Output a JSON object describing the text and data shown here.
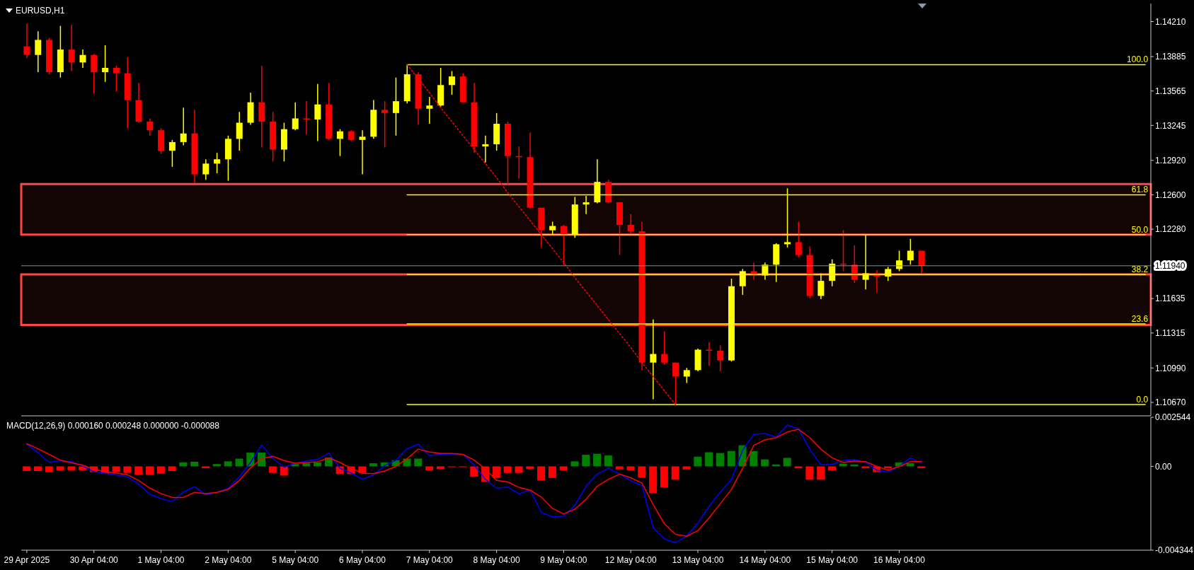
{
  "chart_data": [
    {
      "type": "candlestick",
      "title": "EURUSD,H1",
      "categories": [
        null,
        null,
        null,
        null,
        null,
        null,
        null,
        null,
        null,
        null,
        null,
        null,
        null,
        null,
        null,
        null,
        null,
        null,
        null,
        null,
        null,
        null,
        null,
        null,
        null,
        null,
        null,
        null,
        null,
        null,
        null,
        null,
        null,
        null,
        null,
        null,
        null,
        null,
        null,
        null,
        null,
        null,
        null,
        null,
        null,
        null,
        null,
        null,
        null,
        null,
        null,
        null,
        null,
        null,
        null,
        null,
        null,
        null,
        null,
        null,
        null,
        null,
        null,
        null,
        null,
        null,
        null,
        null,
        null,
        null,
        null,
        null,
        null,
        null,
        null,
        null,
        null,
        null,
        null,
        null,
        null,
        null,
        null,
        null,
        null,
        null,
        null,
        null,
        null,
        null,
        null,
        null,
        null,
        null,
        null,
        null,
        null,
        null,
        null,
        null,
        null
      ],
      "ohlc": [
        [
          1.1398,
          1.1419,
          1.1387,
          1.139
        ],
        [
          1.139,
          1.1412,
          1.1374,
          1.1404
        ],
        [
          1.1404,
          1.1406,
          1.1372,
          1.1374
        ],
        [
          1.1374,
          1.1417,
          1.1369,
          1.1395
        ],
        [
          1.1395,
          1.1418,
          1.1375,
          1.1383
        ],
        [
          1.1383,
          1.1395,
          1.1378,
          1.139
        ],
        [
          1.139,
          1.1391,
          1.1354,
          1.1374
        ],
        [
          1.1374,
          1.1399,
          1.1365,
          1.1378
        ],
        [
          1.1378,
          1.138,
          1.1356,
          1.1373
        ],
        [
          1.1373,
          1.1388,
          1.1322,
          1.1348
        ],
        [
          1.1348,
          1.1364,
          1.1327,
          1.1328
        ],
        [
          1.1328,
          1.1331,
          1.1315,
          1.132
        ],
        [
          1.132,
          1.1322,
          1.1298,
          1.1301
        ],
        [
          1.1301,
          1.1311,
          1.1286,
          1.1309
        ],
        [
          1.1309,
          1.1341,
          1.1306,
          1.1317
        ],
        [
          1.1317,
          1.1339,
          1.1271,
          1.1279
        ],
        [
          1.1279,
          1.1293,
          1.1274,
          1.1289
        ],
        [
          1.1289,
          1.1299,
          1.128,
          1.1293
        ],
        [
          1.1293,
          1.1315,
          1.1273,
          1.1312
        ],
        [
          1.1312,
          1.1337,
          1.1301,
          1.1327
        ],
        [
          1.1327,
          1.1355,
          1.1325,
          1.1346
        ],
        [
          1.1346,
          1.138,
          1.1304,
          1.1328
        ],
        [
          1.1328,
          1.1337,
          1.1291,
          1.1302
        ],
        [
          1.1302,
          1.1327,
          1.1291,
          1.1321
        ],
        [
          1.1321,
          1.1346,
          1.132,
          1.1331
        ],
        [
          1.1331,
          1.1347,
          1.1316,
          1.133
        ],
        [
          1.133,
          1.1363,
          1.131,
          1.1344
        ],
        [
          1.1344,
          1.1364,
          1.1311,
          1.1312
        ],
        [
          1.1312,
          1.1321,
          1.1296,
          1.1319
        ],
        [
          1.1319,
          1.132,
          1.131,
          1.1311
        ],
        [
          1.1311,
          1.132,
          1.1279,
          1.1314
        ],
        [
          1.1314,
          1.1348,
          1.1312,
          1.1339
        ],
        [
          1.1339,
          1.1347,
          1.1304,
          1.1336
        ],
        [
          1.1336,
          1.1369,
          1.1315,
          1.1347
        ],
        [
          1.1347,
          1.1381,
          1.1345,
          1.1372
        ],
        [
          1.1372,
          1.1374,
          1.1325,
          1.134
        ],
        [
          1.134,
          1.1351,
          1.1326,
          1.1343
        ],
        [
          1.1343,
          1.1378,
          1.1342,
          1.1362
        ],
        [
          1.1362,
          1.1375,
          1.1353,
          1.137
        ],
        [
          1.137,
          1.1373,
          1.1346,
          1.1346
        ],
        [
          1.1346,
          1.1364,
          1.1299,
          1.1305
        ],
        [
          1.1305,
          1.1315,
          1.129,
          1.1307
        ],
        [
          1.1307,
          1.1336,
          1.1301,
          1.1326
        ],
        [
          1.1326,
          1.1328,
          1.127,
          1.1296
        ],
        [
          1.1296,
          1.1305,
          1.1275,
          1.1295
        ],
        [
          1.1295,
          1.1318,
          1.1247,
          1.1248
        ],
        [
          1.1248,
          1.1248,
          1.1211,
          1.1227
        ],
        [
          1.1227,
          1.1235,
          1.1223,
          1.1231
        ],
        [
          1.1231,
          1.1232,
          1.1195,
          1.1223
        ],
        [
          1.1223,
          1.1258,
          1.122,
          1.1251
        ],
        [
          1.1251,
          1.1259,
          1.1242,
          1.1253
        ],
        [
          1.1253,
          1.1293,
          1.1252,
          1.1272
        ],
        [
          1.1272,
          1.1274,
          1.1252,
          1.1253
        ],
        [
          1.1253,
          1.1253,
          1.1204,
          1.1232
        ],
        [
          1.1232,
          1.1242,
          1.1223,
          1.1226
        ],
        [
          1.1226,
          1.1235,
          1.1097,
          1.1104
        ],
        [
          1.1104,
          1.1144,
          1.107,
          1.1112
        ],
        [
          1.1112,
          1.1133,
          1.1102,
          1.1104
        ],
        [
          1.1104,
          1.1104,
          1.1065,
          1.1091
        ],
        [
          1.1091,
          1.1099,
          1.1085,
          1.1097
        ],
        [
          1.1097,
          1.1117,
          1.1096,
          1.1116
        ],
        [
          1.1116,
          1.1123,
          1.1101,
          1.1115
        ],
        [
          1.1115,
          1.112,
          1.1096,
          1.1106
        ],
        [
          1.1106,
          1.1182,
          1.1105,
          1.1175
        ],
        [
          1.1175,
          1.1191,
          1.1167,
          1.1189
        ],
        [
          1.1189,
          1.1197,
          1.1181,
          1.1185
        ],
        [
          1.1185,
          1.1197,
          1.1181,
          1.1195
        ],
        [
          1.1195,
          1.1215,
          1.1179,
          1.1214
        ],
        [
          1.1214,
          1.1266,
          1.1211,
          1.1216
        ],
        [
          1.1216,
          1.1235,
          1.1202,
          1.1204
        ],
        [
          1.1204,
          1.1212,
          1.1164,
          1.1166
        ],
        [
          1.1166,
          1.1187,
          1.1163,
          1.118
        ],
        [
          1.118,
          1.12,
          1.1175,
          1.1196
        ],
        [
          1.1196,
          1.1227,
          1.1189,
          1.1195
        ],
        [
          1.1195,
          1.1213,
          1.1178,
          1.1181
        ],
        [
          1.1181,
          1.1223,
          1.1172,
          1.1187
        ],
        [
          1.1187,
          1.119,
          1.1169,
          1.1184
        ],
        [
          1.1184,
          1.1193,
          1.118,
          1.1191
        ],
        [
          1.1191,
          1.1208,
          1.1189,
          1.1199
        ],
        [
          1.1199,
          1.1219,
          1.1195,
          1.1208
        ],
        [
          1.1208,
          1.1208,
          1.1187,
          1.1194
        ],
        null,
        null,
        null,
        null,
        null,
        null,
        null,
        null,
        null,
        null,
        null,
        null,
        null,
        null,
        null,
        null,
        null,
        null,
        null,
        null
      ],
      "colors": [
        "#ff0000",
        "#ffff00",
        "#ff0000",
        "#ffff00",
        "#ff0000",
        "#ffff00",
        "#ff0000",
        "#ffff00",
        "#ff0000",
        "#ff0000",
        "#ff0000",
        "#ff0000",
        "#ff0000",
        "#ffff00",
        "#ffff00",
        "#ff0000",
        "#ffff00",
        "#ffff00",
        "#ffff00",
        "#ffff00",
        "#ffff00",
        "#ff0000",
        "#ff0000",
        "#ffff00",
        "#ffff00",
        "#ff0000",
        "#ffff00",
        "#ff0000",
        "#ffff00",
        "#ff0000",
        "#ffff00",
        "#ffff00",
        "#ff0000",
        "#ffff00",
        "#ffff00",
        "#ff0000",
        "#ffff00",
        "#ffff00",
        "#ffff00",
        "#ff0000",
        "#ff0000",
        "#ffff00",
        "#ffff00",
        "#ff0000",
        "#ff0000",
        "#ff0000",
        "#ff0000",
        "#ffff00",
        "#ff0000",
        "#ffff00",
        "#ffff00",
        "#ffff00",
        "#ff0000",
        "#ff0000",
        "#ff0000",
        "#ff0000",
        "#ffff00",
        "#ff0000",
        "#ff0000",
        "#ffff00",
        "#ffff00",
        "#ff0000",
        "#ff0000",
        "#ffff00",
        "#ffff00",
        "#ff0000",
        "#ffff00",
        "#ffff00",
        "#ffff00",
        "#ff0000",
        "#ff0000",
        "#ffff00",
        "#ffff00",
        "#ff0000",
        "#ff0000",
        "#ffff00",
        "#ff0000",
        "#ffff00",
        "#ffff00",
        "#ffff00",
        "#ff0000",
        null,
        null,
        null,
        null,
        null,
        null,
        null,
        null,
        null,
        null,
        null,
        null,
        null,
        null,
        null,
        null,
        null,
        null,
        null,
        null
      ],
      "series": [
        {
          "type": "line",
          "name": "100.0",
          "color": "#ffff00",
          "values": [
            null,
            null,
            null,
            null,
            null,
            null,
            null,
            null,
            null,
            null,
            null,
            null,
            null,
            null,
            null,
            null,
            null,
            null,
            null,
            null,
            null,
            null,
            null,
            null,
            null,
            null,
            null,
            null,
            null,
            null,
            null,
            null,
            null,
            null,
            1.1381,
            1.1381,
            1.1381,
            1.1381,
            1.1381,
            1.1381,
            1.1381,
            1.1381,
            1.1381,
            1.1381,
            1.1381,
            1.1381,
            1.1381,
            1.1381,
            1.1381,
            1.1381,
            1.1381,
            1.1381,
            1.1381,
            1.1381,
            1.1381,
            1.1381,
            1.1381,
            1.1381,
            1.1381,
            1.1381,
            1.1381,
            1.1381,
            1.1381,
            1.1381,
            1.1381,
            1.1381,
            1.1381,
            1.1381,
            1.1381,
            1.1381,
            1.1381,
            1.1381,
            1.1381,
            1.1381,
            1.1381,
            1.1381,
            1.1381,
            1.1381,
            1.1381,
            1.1381,
            1.1381,
            1.1381,
            1.1381,
            1.1381,
            1.1381,
            1.1381,
            1.1381,
            1.1381,
            1.1381,
            1.1381,
            1.1381,
            1.1381,
            1.1381,
            1.1381,
            1.1381,
            1.1381,
            1.1381,
            1.1381,
            1.1381,
            1.1381,
            1.1381
          ]
        },
        {
          "type": "line",
          "name": "61.8",
          "color": "#ffff00",
          "values": [
            null,
            null,
            null,
            null,
            null,
            null,
            null,
            null,
            null,
            null,
            null,
            null,
            null,
            null,
            null,
            null,
            null,
            null,
            null,
            null,
            null,
            null,
            null,
            null,
            null,
            null,
            null,
            null,
            null,
            null,
            null,
            null,
            null,
            null,
            1.126,
            1.126,
            1.126,
            1.126,
            1.126,
            1.126,
            1.126,
            1.126,
            1.126,
            1.126,
            1.126,
            1.126,
            1.126,
            1.126,
            1.126,
            1.126,
            1.126,
            1.126,
            1.126,
            1.126,
            1.126,
            1.126,
            1.126,
            1.126,
            1.126,
            1.126,
            1.126,
            1.126,
            1.126,
            1.126,
            1.126,
            1.126,
            1.126,
            1.126,
            1.126,
            1.126,
            1.126,
            1.126,
            1.126,
            1.126,
            1.126,
            1.126,
            1.126,
            1.126,
            1.126,
            1.126,
            1.126,
            1.126,
            1.126,
            1.126,
            1.126,
            1.126,
            1.126,
            1.126,
            1.126,
            1.126,
            1.126,
            1.126,
            1.126,
            1.126,
            1.126,
            1.126,
            1.126,
            1.126,
            1.126,
            1.126,
            1.126
          ]
        },
        {
          "type": "line",
          "name": "50.0",
          "color": "#ffff00",
          "values": [
            null,
            null,
            null,
            null,
            null,
            null,
            null,
            null,
            null,
            null,
            null,
            null,
            null,
            null,
            null,
            null,
            null,
            null,
            null,
            null,
            null,
            null,
            null,
            null,
            null,
            null,
            null,
            null,
            null,
            null,
            null,
            null,
            null,
            null,
            1.1223,
            1.1223,
            1.1223,
            1.1223,
            1.1223,
            1.1223,
            1.1223,
            1.1223,
            1.1223,
            1.1223,
            1.1223,
            1.1223,
            1.1223,
            1.1223,
            1.1223,
            1.1223,
            1.1223,
            1.1223,
            1.1223,
            1.1223,
            1.1223,
            1.1223,
            1.1223,
            1.1223,
            1.1223,
            1.1223,
            1.1223,
            1.1223,
            1.1223,
            1.1223,
            1.1223,
            1.1223,
            1.1223,
            1.1223,
            1.1223,
            1.1223,
            1.1223,
            1.1223,
            1.1223,
            1.1223,
            1.1223,
            1.1223,
            1.1223,
            1.1223,
            1.1223,
            1.1223,
            1.1223,
            1.1223,
            1.1223,
            1.1223,
            1.1223,
            1.1223,
            1.1223,
            1.1223,
            1.1223,
            1.1223,
            1.1223,
            1.1223,
            1.1223,
            1.1223,
            1.1223,
            1.1223,
            1.1223,
            1.1223,
            1.1223,
            1.1223,
            1.1223
          ]
        },
        {
          "type": "line",
          "name": "38.2",
          "color": "#ffff00",
          "values": [
            null,
            null,
            null,
            null,
            null,
            null,
            null,
            null,
            null,
            null,
            null,
            null,
            null,
            null,
            null,
            null,
            null,
            null,
            null,
            null,
            null,
            null,
            null,
            null,
            null,
            null,
            null,
            null,
            null,
            null,
            null,
            null,
            null,
            null,
            1.1186,
            1.1186,
            1.1186,
            1.1186,
            1.1186,
            1.1186,
            1.1186,
            1.1186,
            1.1186,
            1.1186,
            1.1186,
            1.1186,
            1.1186,
            1.1186,
            1.1186,
            1.1186,
            1.1186,
            1.1186,
            1.1186,
            1.1186,
            1.1186,
            1.1186,
            1.1186,
            1.1186,
            1.1186,
            1.1186,
            1.1186,
            1.1186,
            1.1186,
            1.1186,
            1.1186,
            1.1186,
            1.1186,
            1.1186,
            1.1186,
            1.1186,
            1.1186,
            1.1186,
            1.1186,
            1.1186,
            1.1186,
            1.1186,
            1.1186,
            1.1186,
            1.1186,
            1.1186,
            1.1186,
            1.1186,
            1.1186,
            1.1186,
            1.1186,
            1.1186,
            1.1186,
            1.1186,
            1.1186,
            1.1186,
            1.1186,
            1.1186,
            1.1186,
            1.1186,
            1.1186,
            1.1186,
            1.1186,
            1.1186,
            1.1186,
            1.1186,
            1.1186
          ]
        },
        {
          "type": "line",
          "name": "23.6",
          "color": "#ffff00",
          "values": [
            null,
            null,
            null,
            null,
            null,
            null,
            null,
            null,
            null,
            null,
            null,
            null,
            null,
            null,
            null,
            null,
            null,
            null,
            null,
            null,
            null,
            null,
            null,
            null,
            null,
            null,
            null,
            null,
            null,
            null,
            null,
            null,
            null,
            null,
            1.114,
            1.114,
            1.114,
            1.114,
            1.114,
            1.114,
            1.114,
            1.114,
            1.114,
            1.114,
            1.114,
            1.114,
            1.114,
            1.114,
            1.114,
            1.114,
            1.114,
            1.114,
            1.114,
            1.114,
            1.114,
            1.114,
            1.114,
            1.114,
            1.114,
            1.114,
            1.114,
            1.114,
            1.114,
            1.114,
            1.114,
            1.114,
            1.114,
            1.114,
            1.114,
            1.114,
            1.114,
            1.114,
            1.114,
            1.114,
            1.114,
            1.114,
            1.114,
            1.114,
            1.114,
            1.114,
            1.114,
            1.114,
            1.114,
            1.114,
            1.114,
            1.114,
            1.114,
            1.114,
            1.114,
            1.114,
            1.114,
            1.114,
            1.114,
            1.114,
            1.114,
            1.114,
            1.114,
            1.114,
            1.114,
            1.114,
            1.114
          ]
        },
        {
          "type": "line",
          "name": "0.0",
          "color": "#ffff00",
          "values": [
            null,
            null,
            null,
            null,
            null,
            null,
            null,
            null,
            null,
            null,
            null,
            null,
            null,
            null,
            null,
            null,
            null,
            null,
            null,
            null,
            null,
            null,
            null,
            null,
            null,
            null,
            null,
            null,
            null,
            null,
            null,
            null,
            null,
            null,
            1.1065,
            1.1065,
            1.1065,
            1.1065,
            1.1065,
            1.1065,
            1.1065,
            1.1065,
            1.1065,
            1.1065,
            1.1065,
            1.1065,
            1.1065,
            1.1065,
            1.1065,
            1.1065,
            1.1065,
            1.1065,
            1.1065,
            1.1065,
            1.1065,
            1.1065,
            1.1065,
            1.1065,
            1.1065,
            1.1065,
            1.1065,
            1.1065,
            1.1065,
            1.1065,
            1.1065,
            1.1065,
            1.1065,
            1.1065,
            1.1065,
            1.1065,
            1.1065,
            1.1065,
            1.1065,
            1.1065,
            1.1065,
            1.1065,
            1.1065,
            1.1065,
            1.1065,
            1.1065,
            1.1065,
            1.1065,
            1.1065,
            1.1065,
            1.1065,
            1.1065,
            1.1065,
            1.1065,
            1.1065,
            1.1065,
            1.1065,
            1.1065,
            1.1065,
            1.1065,
            1.1065,
            1.1065,
            1.1065,
            1.1065,
            1.1065,
            1.1065,
            1.1065
          ]
        },
        {
          "type": "line",
          "color": "#ff0000",
          "line_style": "dotted",
          "values": [
            null,
            null,
            null,
            null,
            null,
            null,
            null,
            null,
            null,
            null,
            null,
            null,
            null,
            null,
            null,
            null,
            null,
            null,
            null,
            null,
            null,
            null,
            null,
            null,
            null,
            null,
            null,
            null,
            null,
            null,
            null,
            null,
            null,
            null,
            1.1381,
            1.1368,
            1.1355,
            1.1341,
            1.1328,
            1.1315,
            1.1302,
            1.1289,
            1.1276,
            1.1262,
            1.1249,
            1.1236,
            1.1223,
            1.121,
            1.1197,
            1.1183,
            1.117,
            1.1157,
            1.1144,
            1.1131,
            1.1118,
            1.1104,
            1.1091,
            1.1078,
            1.1065,
            null,
            null,
            null,
            null,
            null,
            null,
            null,
            null,
            null,
            null,
            null,
            null,
            null,
            null,
            null,
            null,
            null,
            null,
            null,
            null,
            null,
            null,
            null,
            null,
            null,
            null,
            null,
            null,
            null,
            null,
            null,
            null,
            null,
            null,
            null,
            null,
            null,
            null,
            null,
            null,
            null,
            null
          ]
        }
      ],
      "ylim": [
        1.10545,
        1.14378
      ],
      "yticks": [
        {
          "value": 1.1067,
          "label": "1.10670"
        },
        {
          "value": 1.1099,
          "label": "1.10990"
        },
        1.11315,
        1.11635,
        {
          "value": 1.1228,
          "label": "1.12280"
        },
        {
          "value": 1.126,
          "label": "1.12600"
        },
        {
          "value": 1.1292,
          "label": "1.12920"
        },
        1.13245,
        1.13565,
        1.13885,
        {
          "value": 1.1421,
          "label": "1.14210"
        }
      ],
      "ref_lines": [
        {
          "axis": "y",
          "value": 1.1194,
          "label": "1.11940",
          "color": "#8090a0"
        }
      ],
      "bands": [
        {
          "axis": "y",
          "from": 1.1223,
          "to": 1.127,
          "color": "#ff4545"
        },
        {
          "axis": "y",
          "from": 1.1139,
          "to": 1.1186,
          "color": "#ff4545"
        }
      ],
      "marker": "none"
    },
    {
      "type": "bar",
      "title": "MACD(12,26,9) 0.000160 0.000248 0.000000 -0.000088",
      "categories": [
        "29 Apr 2025",
        null,
        null,
        null,
        null,
        null,
        "30 Apr 04:00",
        null,
        null,
        null,
        null,
        null,
        "1 May 04:00",
        null,
        null,
        null,
        null,
        null,
        "2 May 04:00",
        null,
        null,
        null,
        null,
        null,
        "5 May 04:00",
        null,
        null,
        null,
        null,
        null,
        "6 May 04:00",
        null,
        null,
        null,
        null,
        null,
        "7 May 04:00",
        null,
        null,
        null,
        null,
        null,
        "8 May 04:00",
        null,
        null,
        null,
        null,
        null,
        "9 May 04:00",
        null,
        null,
        null,
        null,
        null,
        "12 May 04:00",
        null,
        null,
        null,
        null,
        null,
        "13 May 04:00",
        null,
        null,
        null,
        null,
        null,
        "14 May 04:00",
        null,
        null,
        null,
        null,
        null,
        "15 May 04:00",
        null,
        null,
        null,
        null,
        null,
        "16 May 04:00",
        null,
        null,
        null,
        null,
        null,
        null,
        null,
        null,
        null,
        null,
        null,
        null,
        null,
        null,
        null,
        null,
        null,
        null,
        null,
        null,
        null,
        null
      ],
      "series": [
        {
          "type": "bar",
          "values": [
            -0.00024,
            -0.00024,
            -0.0003,
            -0.0002,
            -0.0002,
            -0.0002,
            -0.0003,
            -0.00038,
            -0.00028,
            -0.00034,
            -0.00044,
            -0.00044,
            -0.00038,
            -0.00024,
            0.0002,
            0.00024,
            -0.0001,
            0.00012,
            0.00026,
            0.0004,
            0.00071,
            0.00071,
            -0.00034,
            -0.00048,
            0.00012,
            0.00016,
            0.0002,
            0.00046,
            -0.0004,
            -0.0004,
            -0.00034,
            0.00016,
            0.0002,
            0.00032,
            0.0004,
            0.0004,
            -0.0002,
            -0.00014,
            -4e-05,
            -4e-05,
            -0.00054,
            -0.00079,
            -0.0006,
            -0.00034,
            -0.00034,
            -0.00014,
            -0.00073,
            -0.0006,
            -0.0002,
            0.00026,
            0.0006,
            0.00065,
            0.00056,
            -0.00016,
            -0.0002,
            -0.00059,
            -0.00139,
            -0.00109,
            -0.00069,
            -0.00016,
            0.0005,
            0.00073,
            0.00069,
            0.00079,
            0.00109,
            0.00079,
            0.00036,
            0.0001,
            0.00044,
            -0.0001,
            -0.00069,
            -0.00069,
            -0.0002,
            0.00014,
            0.0001,
            -0.0001,
            -0.0003,
            -0.0001,
            0.0002,
            0.00016,
            -9e-05,
            null,
            null,
            null,
            null,
            null,
            null,
            null,
            null,
            null,
            null,
            null,
            null,
            null,
            null,
            null,
            null,
            null,
            null,
            null,
            null
          ],
          "colors": [
            "#ff0000",
            "#ff0000",
            "#ff0000",
            "#ff0000",
            "#ff0000",
            "#ff0000",
            "#ff0000",
            "#ff0000",
            "#ff0000",
            "#ff0000",
            "#ff0000",
            "#ff0000",
            "#ff0000",
            "#ff0000",
            "#008000",
            "#008000",
            "#ff0000",
            "#008000",
            "#008000",
            "#008000",
            "#008000",
            "#008000",
            "#ff0000",
            "#ff0000",
            "#008000",
            "#008000",
            "#008000",
            "#008000",
            "#ff0000",
            "#ff0000",
            "#ff0000",
            "#008000",
            "#008000",
            "#008000",
            "#008000",
            "#008000",
            "#ff0000",
            "#ff0000",
            "#ff0000",
            "#ff0000",
            "#ff0000",
            "#ff0000",
            "#ff0000",
            "#ff0000",
            "#ff0000",
            "#ff0000",
            "#ff0000",
            "#ff0000",
            "#ff0000",
            "#008000",
            "#008000",
            "#008000",
            "#008000",
            "#ff0000",
            "#ff0000",
            "#ff0000",
            "#ff0000",
            "#ff0000",
            "#ff0000",
            "#ff0000",
            "#008000",
            "#008000",
            "#008000",
            "#008000",
            "#008000",
            "#008000",
            "#008000",
            "#008000",
            "#008000",
            "#ff0000",
            "#ff0000",
            "#ff0000",
            "#ff0000",
            "#008000",
            "#008000",
            "#ff0000",
            "#ff0000",
            "#ff0000",
            "#008000",
            "#008000",
            "#ff0000",
            null,
            null,
            null,
            null,
            null,
            null,
            null,
            null,
            null,
            null,
            null,
            null,
            null,
            null,
            null,
            null,
            null,
            null,
            null,
            null
          ]
        },
        {
          "type": "line",
          "color": "#0000ff",
          "values": [
            0.00115,
            0.00071,
            0.0002,
            0.0003,
            0.00024,
            2e-05,
            -0.00028,
            -0.00036,
            -0.00044,
            -0.00054,
            -0.00093,
            -0.00145,
            -0.00167,
            -0.00183,
            -0.00133,
            -0.00105,
            -0.00147,
            -0.00135,
            -0.00113,
            -0.00054,
            0.0002,
            0.00111,
            0.0004,
            -4e-05,
            0.00016,
            0.00028,
            0.00036,
            0.00069,
            -0.0001,
            -0.00034,
            -0.00067,
            -0.00044,
            4e-05,
            0.00032,
            0.00091,
            0.00115,
            0.00056,
            0.00063,
            0.00065,
            0.0006,
            6e-05,
            -0.00067,
            -0.00113,
            -0.00107,
            -0.00143,
            -0.00123,
            -0.00238,
            -0.00262,
            -0.00258,
            -0.00202,
            -0.00103,
            -0.0004,
            -0.0001,
            -0.0004,
            -0.00075,
            -0.00099,
            -0.00317,
            -0.00376,
            -0.00396,
            -0.0036,
            -0.00293,
            -0.00208,
            -0.00133,
            -0.00069,
            0.00083,
            0.00166,
            0.0017,
            0.00152,
            0.00214,
            0.00194,
            0.00089,
            8e-05,
            0.0001,
            0.0003,
            0.00036,
            0.0002,
            -0.0002,
            -0.0003,
            0,
            0.00044,
            0.00016,
            null,
            null,
            null,
            null,
            null,
            null,
            null,
            null,
            null,
            null,
            null,
            null,
            null,
            null,
            null,
            null,
            null,
            null,
            null,
            null
          ]
        },
        {
          "type": "line",
          "color": "#ff0000",
          "values": [
            0.00117,
            0.00091,
            0.00062,
            0.00032,
            0.00018,
            6e-05,
            -0.00016,
            -0.00028,
            -0.00034,
            -0.00044,
            -0.00073,
            -0.00113,
            -0.00141,
            -0.00161,
            -0.00161,
            -0.00135,
            -0.00141,
            -0.00135,
            -0.00119,
            -0.00073,
            -8e-05,
            0.0004,
            0.00052,
            0.0003,
            0.00016,
            0.0002,
            0.00024,
            0.00044,
            0.0002,
            -0.0001,
            -0.00036,
            -0.00038,
            -0.00024,
            0,
            0.0004,
            0.00089,
            0.00075,
            0.00067,
            0.00067,
            0.00062,
            0.00032,
            -0.00014,
            -0.00073,
            -0.00081,
            -0.00109,
            -0.00123,
            -0.00159,
            -0.00218,
            -0.00246,
            -0.00222,
            -0.00171,
            -0.00103,
            -0.00067,
            -0.0004,
            -0.00059,
            -0.00087,
            -0.00198,
            -0.00297,
            -0.00352,
            -0.00362,
            -0.00333,
            -0.00267,
            -0.00194,
            -0.00119,
            -0.0001,
            0.00109,
            0.00137,
            0.00149,
            0.00178,
            0.00192,
            0.00149,
            0.00089,
            0.00044,
            0.0002,
            0.00028,
            0.00024,
            0,
            -0.0002,
            0,
            0.00024,
            0.00025,
            null,
            null,
            null,
            null,
            null,
            null,
            null,
            null,
            null,
            null,
            null,
            null,
            null,
            null,
            null,
            null,
            null,
            null,
            null,
            null
          ]
        }
      ],
      "ylim": [
        -0.004344,
        0.002544
      ],
      "yticks": [
        -0.004344,
        {
          "value": 0,
          "label": "0.00"
        },
        0.002544
      ],
      "marker": "none"
    }
  ]
}
